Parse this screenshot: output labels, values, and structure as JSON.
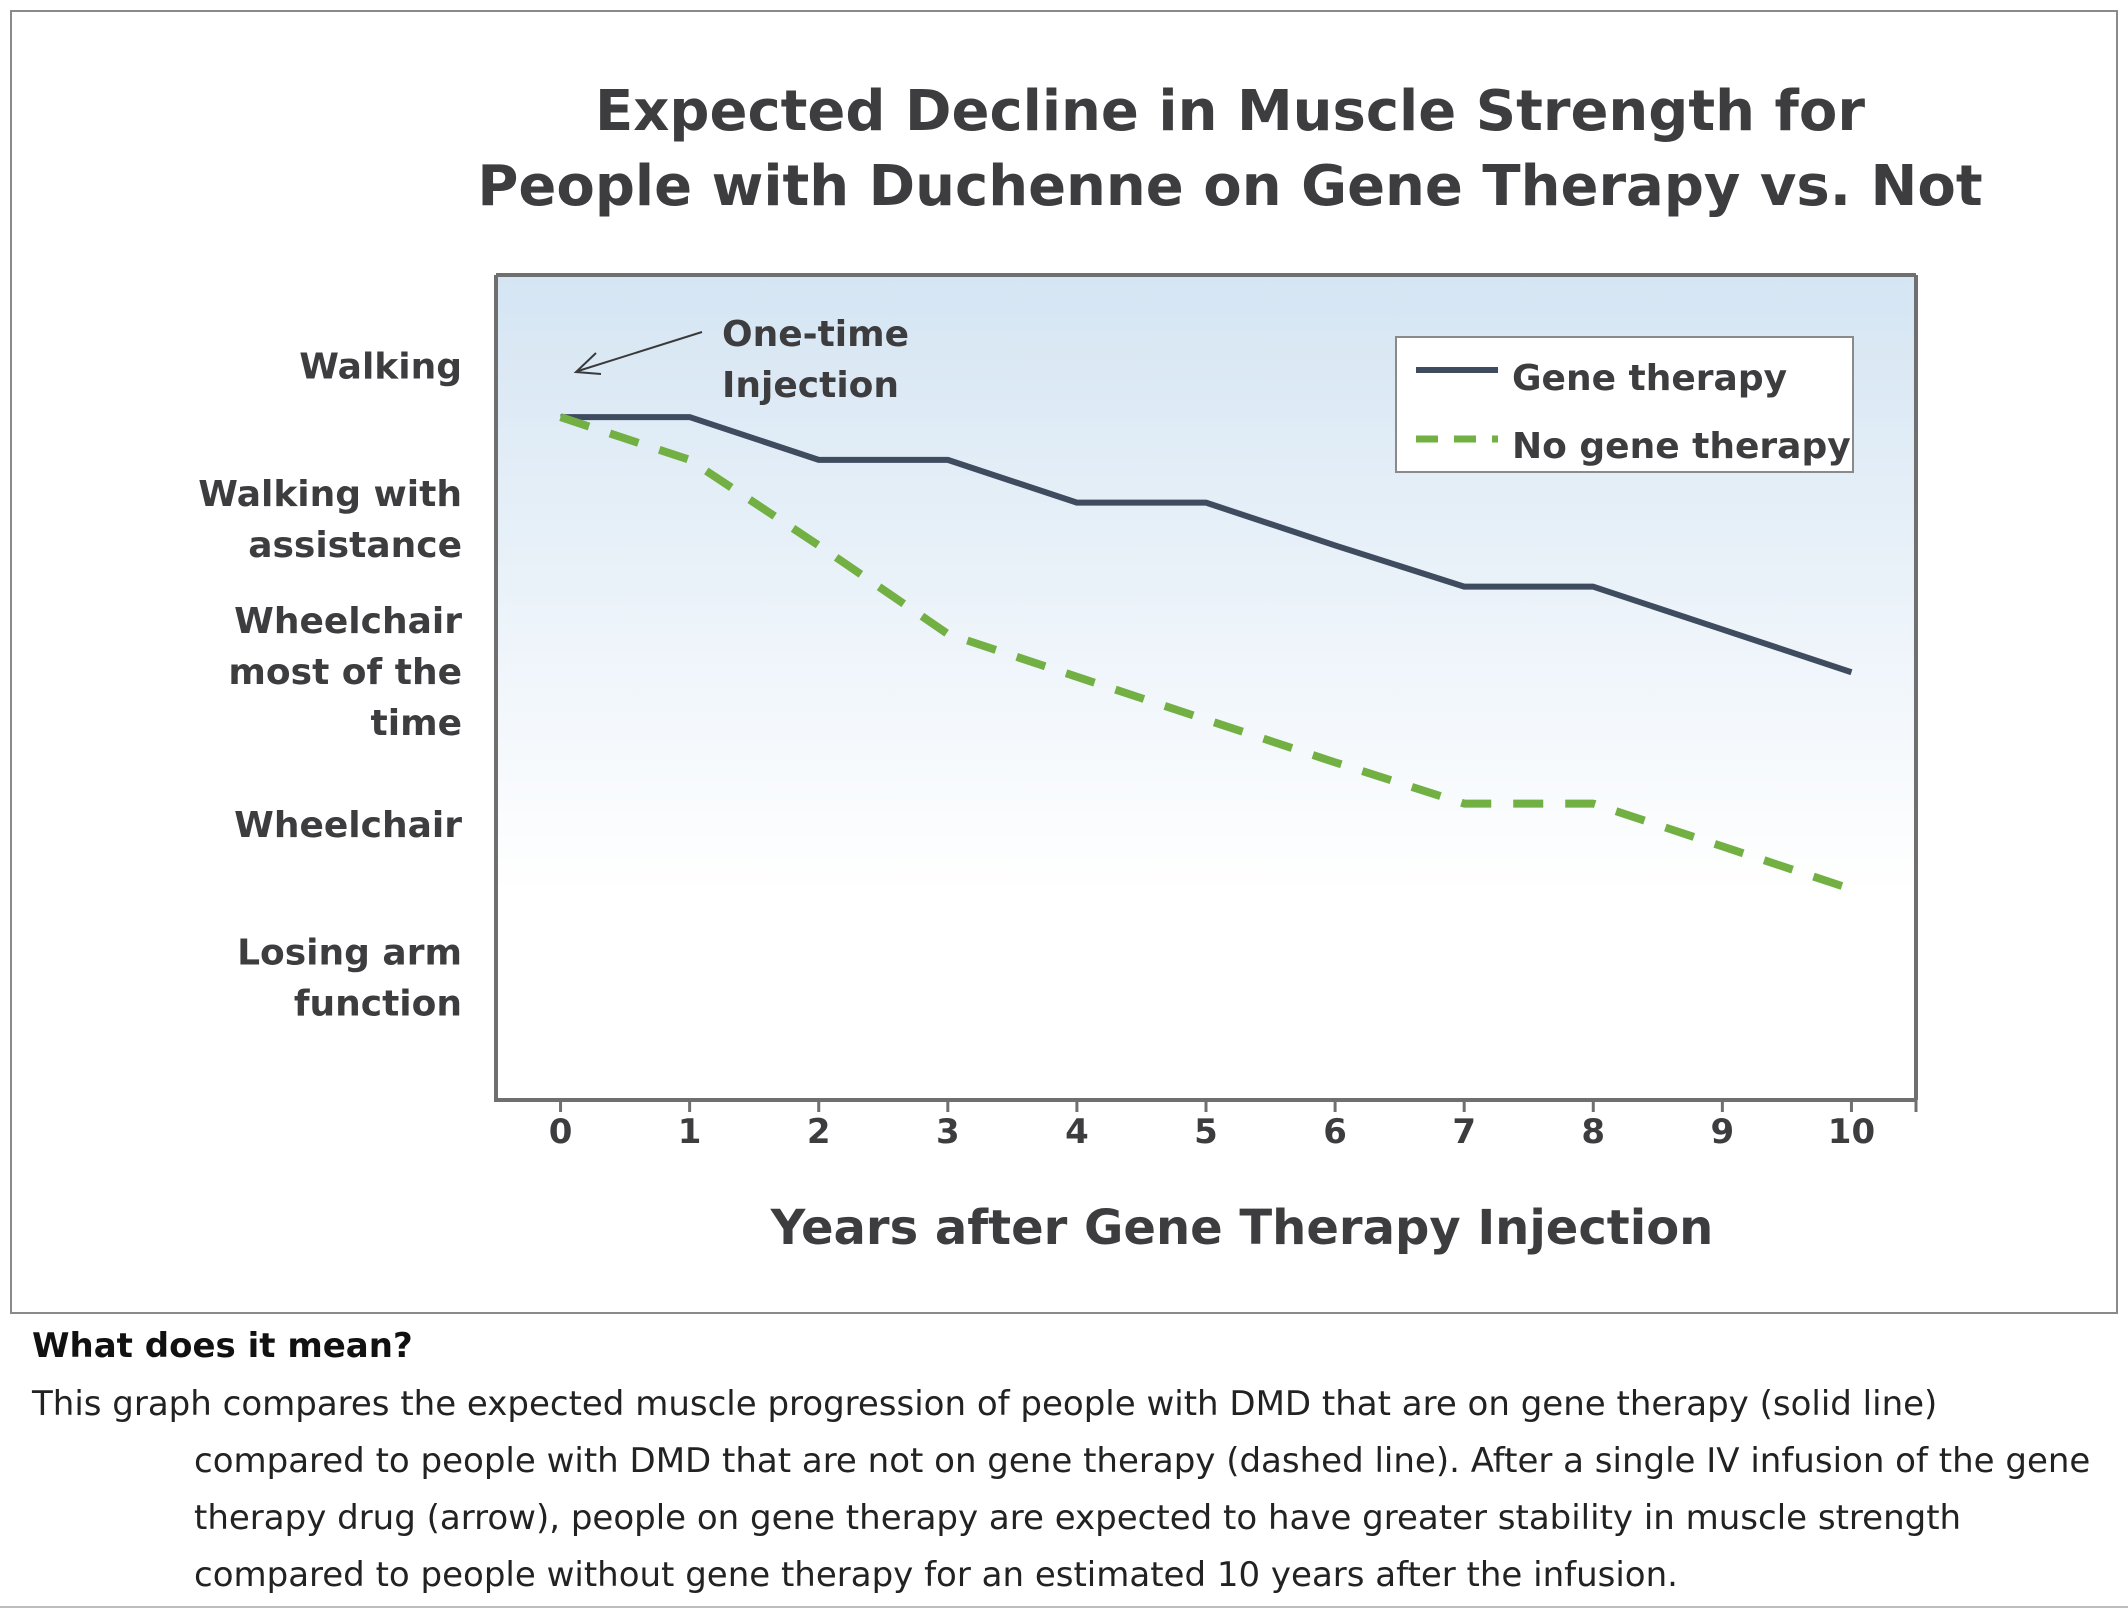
{
  "chart_data": {
    "type": "line",
    "title_lines": [
      "Expected Decline in Muscle Strength for",
      "People with Duchenne on Gene Therapy vs. Not"
    ],
    "xlabel": "Years after Gene Therapy Injection",
    "x": [
      0,
      1,
      2,
      3,
      4,
      5,
      6,
      7,
      8,
      9,
      10
    ],
    "xlim": [
      -0.5,
      10.5
    ],
    "y_categories": [
      {
        "level": 5,
        "lines": [
          "Walking"
        ]
      },
      {
        "level": 4,
        "lines": [
          "Walking with",
          "assistance"
        ]
      },
      {
        "level": 3,
        "lines": [
          "Wheelchair",
          "most of the",
          "time"
        ]
      },
      {
        "level": 2,
        "lines": [
          "Wheelchair"
        ]
      },
      {
        "level": 1,
        "lines": [
          "Losing arm",
          "function"
        ]
      }
    ],
    "ylim": [
      0.2,
      5.6
    ],
    "series": [
      {
        "name": "Gene therapy",
        "style": "solid",
        "color": "#3f4b5e",
        "values": [
          4.67,
          4.67,
          4.39,
          4.39,
          4.11,
          4.11,
          3.83,
          3.56,
          3.56,
          3.28,
          3.0
        ]
      },
      {
        "name": "No gene therapy",
        "style": "dashed",
        "color": "#72b043",
        "values": [
          4.67,
          4.39,
          3.83,
          3.25,
          2.97,
          2.69,
          2.41,
          2.14,
          2.14,
          1.86,
          1.58
        ]
      }
    ],
    "annotation": {
      "lines": [
        "One-time",
        "Injection"
      ],
      "points_to_x": 0
    },
    "legend_position": "top-right",
    "grid": false,
    "background": "gradient light blue to white"
  },
  "explanation": {
    "heading": "What does it mean?",
    "lines": [
      "This graph compares the expected muscle progression of people with DMD that are on gene therapy (solid line)",
      "compared to people with DMD that are not on gene therapy (dashed line). After a single IV infusion of the",
      "gene therapy drug (arrow), people on gene therapy are expected to have greater stability in muscle",
      "strength compared to people without gene therapy for an estimated 10 years after the infusion."
    ]
  }
}
